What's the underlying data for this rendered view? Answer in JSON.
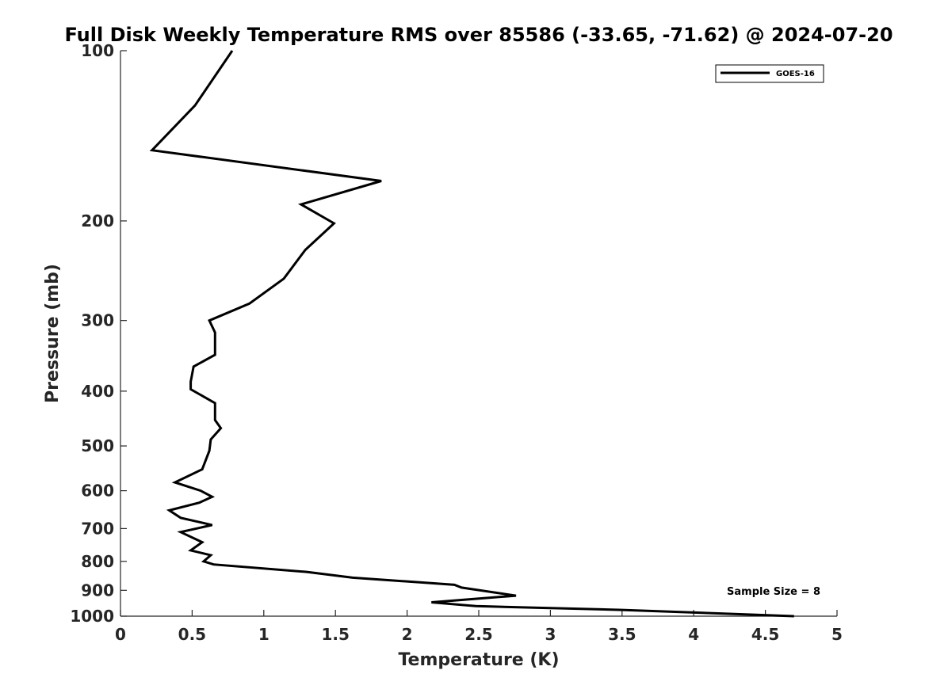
{
  "chart_data": {
    "type": "line",
    "title": "Full Disk Weekly Temperature RMS over 85586 (-33.65, -71.62) @ 2024-07-20",
    "xlabel": "Temperature (K)",
    "ylabel": "Pressure (mb)",
    "xlim": [
      0,
      5
    ],
    "ylim": [
      100,
      1000
    ],
    "y_scale": "log",
    "y_reversed": true,
    "x_ticks": [
      "0",
      "0.5",
      "1",
      "1.5",
      "2",
      "2.5",
      "3",
      "3.5",
      "4",
      "4.5",
      "5"
    ],
    "y_ticks": [
      "100",
      "200",
      "300",
      "400",
      "500",
      "600",
      "700",
      "800",
      "900",
      "1000"
    ],
    "grid": false,
    "legend": {
      "position": "top-right",
      "entries": [
        "GOES-16"
      ]
    },
    "annotation": "Sample Size = 8",
    "series": [
      {
        "name": "GOES-16",
        "color": "#000000",
        "points": [
          [
            0.78,
            100
          ],
          [
            0.52,
            125
          ],
          [
            0.22,
            150
          ],
          [
            1.82,
            170
          ],
          [
            1.26,
            187
          ],
          [
            1.49,
            202
          ],
          [
            1.29,
            225
          ],
          [
            1.14,
            253
          ],
          [
            0.9,
            280
          ],
          [
            0.62,
            300
          ],
          [
            0.66,
            315
          ],
          [
            0.66,
            345
          ],
          [
            0.51,
            362
          ],
          [
            0.49,
            385
          ],
          [
            0.49,
            397
          ],
          [
            0.66,
            420
          ],
          [
            0.66,
            450
          ],
          [
            0.7,
            465
          ],
          [
            0.63,
            487
          ],
          [
            0.62,
            510
          ],
          [
            0.57,
            550
          ],
          [
            0.38,
            580
          ],
          [
            0.56,
            600
          ],
          [
            0.64,
            615
          ],
          [
            0.55,
            630
          ],
          [
            0.34,
            650
          ],
          [
            0.42,
            670
          ],
          [
            0.64,
            690
          ],
          [
            0.42,
            710
          ],
          [
            0.57,
            740
          ],
          [
            0.49,
            765
          ],
          [
            0.63,
            780
          ],
          [
            0.58,
            800
          ],
          [
            0.65,
            810
          ],
          [
            1.3,
            835
          ],
          [
            1.62,
            855
          ],
          [
            2.05,
            870
          ],
          [
            2.33,
            880
          ],
          [
            2.38,
            890
          ],
          [
            2.76,
            920
          ],
          [
            2.17,
            945
          ],
          [
            2.48,
            960
          ],
          [
            3.5,
            975
          ],
          [
            4.7,
            1000
          ]
        ]
      }
    ]
  }
}
